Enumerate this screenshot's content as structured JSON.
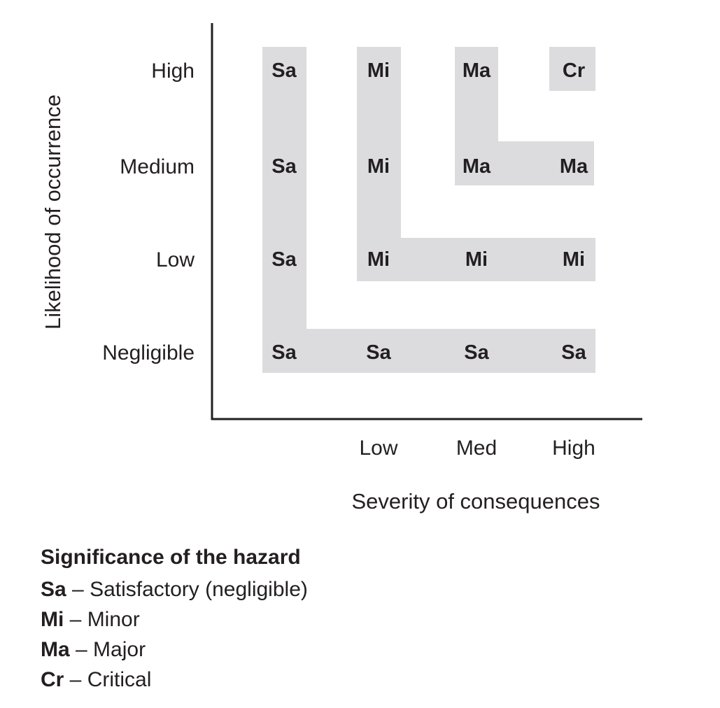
{
  "diagram": {
    "y_axis_title": "Likelihood of occurrence",
    "x_axis_title": "Severity of consequences",
    "rows": [
      "High",
      "Medium",
      "Low",
      "Negligible"
    ],
    "columns": [
      "",
      "Low",
      "Med",
      "High"
    ],
    "cells": [
      [
        "Sa",
        "Mi",
        "Ma",
        "Cr"
      ],
      [
        "Sa",
        "Mi",
        "Ma",
        "Ma"
      ],
      [
        "Sa",
        "Mi",
        "Mi",
        "Mi"
      ],
      [
        "Sa",
        "Sa",
        "Sa",
        "Sa"
      ]
    ],
    "zone_color": "#dcdcde",
    "text_color": "#231f20"
  },
  "legend": {
    "title": "Significance of the hazard",
    "items": [
      {
        "code": "Sa",
        "sep": " – ",
        "meaning": "Satisfactory (negligible)"
      },
      {
        "code": "Mi",
        "sep": " – ",
        "meaning": "Minor"
      },
      {
        "code": "Ma",
        "sep": " – ",
        "meaning": "Major"
      },
      {
        "code": "Cr",
        "sep": " – ",
        "meaning": "Critical"
      }
    ]
  }
}
